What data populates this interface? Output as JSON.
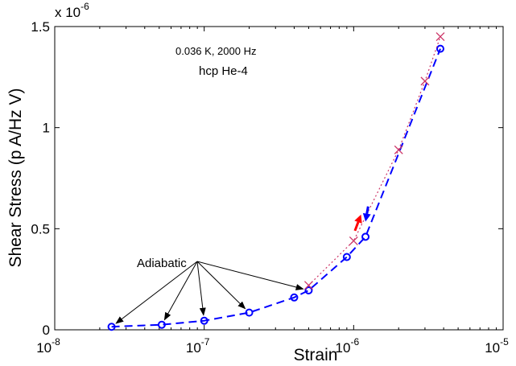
{
  "chart_data": {
    "type": "scatter",
    "xscale": "log",
    "xlim": [
      1e-08,
      1e-05
    ],
    "ylim": [
      0,
      1.5e-06
    ],
    "xlabel": "Strain",
    "ylabel": "Shear Stress (p A/Hz V)",
    "y_multiplier": "x 10",
    "y_multiplier_exponent": "-6",
    "x_ticks": [
      {
        "value": 1e-08,
        "base": "10",
        "exp": "-8"
      },
      {
        "value": 1e-07,
        "base": "10",
        "exp": "-7"
      },
      {
        "value": 1e-06,
        "base": "10",
        "exp": "-6"
      },
      {
        "value": 1e-05,
        "base": "10",
        "exp": "-5"
      }
    ],
    "y_ticks": [
      {
        "value": 0,
        "label": "0"
      },
      {
        "value": 5e-07,
        "label": "0.5"
      },
      {
        "value": 1e-06,
        "label": "1"
      },
      {
        "value": 1.5e-06,
        "label": "1.5"
      }
    ],
    "annotations": {
      "condition": "0.036 K, 2000 Hz",
      "sample": "hcp He-4",
      "adiabatic": "Adiabatic"
    },
    "adiabatic_targets": [
      2.4e-08,
      5.2e-08,
      1e-07,
      2e-07,
      5e-07
    ],
    "series": [
      {
        "marker": "circle",
        "line": "dashed",
        "color": "#0000ff",
        "x": [
          2.4e-08,
          5.2e-08,
          1e-07,
          2e-07,
          4e-07,
          5e-07,
          9e-07,
          1.2e-06,
          3.8e-06
        ],
        "y": [
          1.5e-08,
          2.5e-08,
          4.5e-08,
          8.5e-08,
          1.6e-07,
          1.95e-07,
          3.6e-07,
          4.6e-07,
          1.39e-06
        ]
      },
      {
        "marker": "cross",
        "line": "dotted",
        "color": "#cc3366",
        "x": [
          5e-07,
          1e-06,
          2e-06,
          3e-06,
          3.8e-06
        ],
        "y": [
          2.2e-07,
          4.4e-07,
          8.9e-07,
          1.23e-06,
          1.45e-06
        ]
      }
    ],
    "arrows": [
      {
        "color": "#ff0000",
        "from": [
          1.02e-06,
          4.9e-07
        ],
        "to": [
          1.12e-06,
          5.7e-07
        ]
      },
      {
        "color": "#0000ff",
        "from": [
          1.25e-06,
          6.1e-07
        ],
        "to": [
          1.2e-06,
          5.35e-07
        ]
      }
    ],
    "grid": false,
    "legend": "none"
  }
}
